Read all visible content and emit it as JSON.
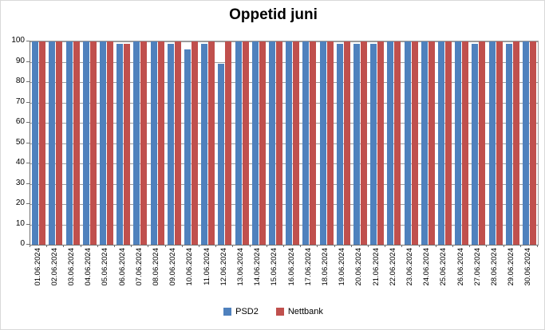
{
  "title": "Oppetid juni",
  "chart_data": {
    "type": "bar",
    "title": "Oppetid juni",
    "xlabel": "",
    "ylabel": "",
    "ylim": [
      0,
      100
    ],
    "ytick_interval": 10,
    "ytick_labels": [
      "0",
      "10",
      "20",
      "30",
      "40",
      "50",
      "60",
      "70",
      "80",
      "90",
      "100"
    ],
    "grid": true,
    "legend_position": "bottom",
    "categories": [
      "01.06.2024",
      "02.06.2024",
      "03.06.2024",
      "04.06.2024",
      "05.06.2024",
      "06.06.2024",
      "07.06.2024",
      "08.06.2024",
      "09.06.2024",
      "10.06.2024",
      "11.06.2024",
      "12.06.2024",
      "13.06.2024",
      "14.06.2024",
      "15.06.2024",
      "16.06.2024",
      "17.06.2024",
      "18.06.2024",
      "19.06.2024",
      "20.06.2024",
      "21.06.2024",
      "22.06.2024",
      "23.06.2024",
      "24.06.2024",
      "25.06.2024",
      "26.06.2024",
      "27.06.2024",
      "28.06.2024",
      "29.06.2024",
      "30.06.2024"
    ],
    "series": [
      {
        "name": "PSD2",
        "color": "#4F81BD",
        "values": [
          100,
          100,
          100,
          100,
          100,
          99,
          100,
          100,
          99,
          96,
          99,
          89,
          100,
          100,
          100,
          100,
          100,
          100,
          99,
          99,
          99,
          100,
          100,
          100,
          100,
          100,
          99,
          100,
          99,
          100
        ]
      },
      {
        "name": "Nettbank",
        "color": "#C0504D",
        "values": [
          100,
          100,
          100,
          100,
          100,
          99,
          100,
          100,
          100,
          100,
          100,
          100,
          100,
          100,
          100,
          100,
          100,
          100,
          100,
          100,
          100,
          100,
          100,
          100,
          100,
          100,
          100,
          100,
          100,
          100
        ]
      }
    ]
  },
  "legend": {
    "items": [
      {
        "label": "PSD2",
        "color": "#4F81BD"
      },
      {
        "label": "Nettbank",
        "color": "#C0504D"
      }
    ]
  },
  "colors": {
    "background": "#ffffff",
    "gridline": "#9c9c9c",
    "axis": "#6f6f6f",
    "text": "#000000"
  }
}
